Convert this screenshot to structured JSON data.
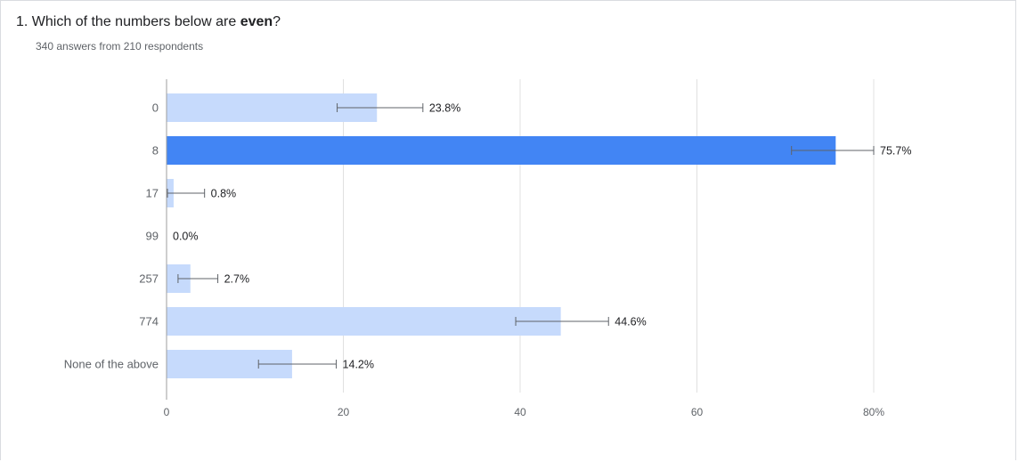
{
  "question": {
    "number": "1.",
    "text_before": "Which of the numbers below are ",
    "text_bold": "even",
    "text_after": "?",
    "subtitle": "340 answers from 210 respondents"
  },
  "chart_data": {
    "type": "bar",
    "orientation": "horizontal",
    "categories": [
      "0",
      "8",
      "17",
      "99",
      "257",
      "774",
      "None of the above"
    ],
    "values": [
      23.8,
      75.7,
      0.8,
      0.0,
      2.7,
      44.6,
      14.2
    ],
    "value_labels": [
      "23.8%",
      "75.7%",
      "0.8%",
      "0.0%",
      "2.7%",
      "44.6%",
      "14.2%"
    ],
    "error_bars": [
      [
        19.3,
        29.0
      ],
      [
        70.7,
        80.0
      ],
      [
        0.1,
        4.3
      ],
      [
        0.0,
        0.0
      ],
      [
        1.3,
        5.8
      ],
      [
        39.5,
        50.0
      ],
      [
        10.4,
        19.2
      ]
    ],
    "highlighted_category": "8",
    "colors": {
      "bar": "#c6dafc",
      "bar_highlight": "#4285f4",
      "grid": "#e0e0e0",
      "axis": "#9e9e9e",
      "error_bar": "#5f6368"
    },
    "xlim": [
      0,
      80
    ],
    "xticks": [
      0,
      20,
      40,
      60,
      80
    ],
    "xtick_labels": [
      "0",
      "20",
      "40",
      "60",
      "80%"
    ],
    "grid": true
  }
}
